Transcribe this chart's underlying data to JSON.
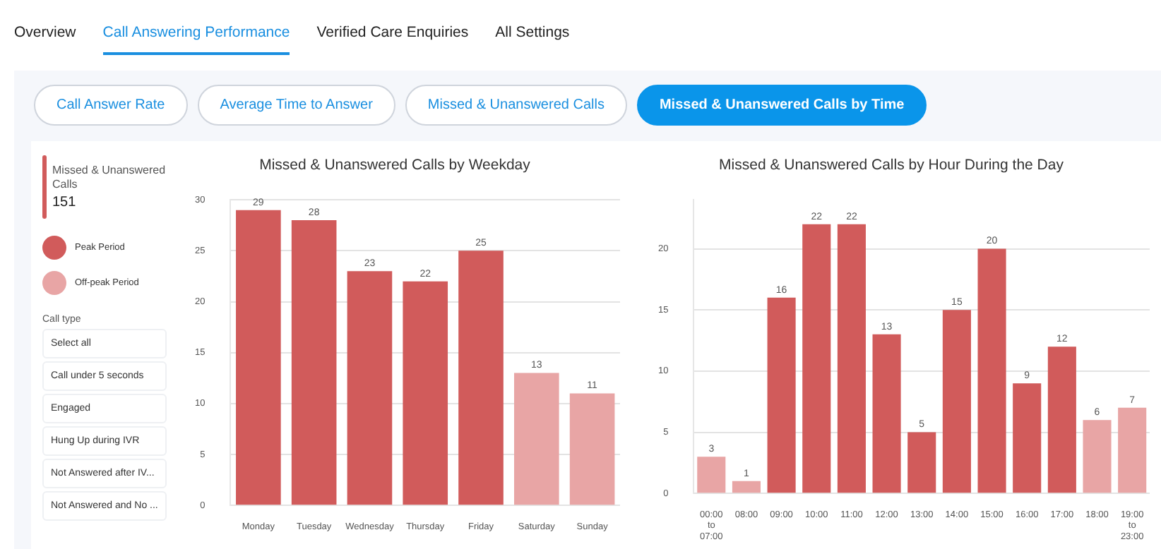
{
  "chart_data": [
    {
      "type": "other",
      "title": "Missed & Unanswered Calls",
      "colors": [
        "#d15b5b",
        "#e8a5a5"
      ],
      "annotations": [
        "Overview",
        "Call Answering Performance",
        "Verified Care Enquiries",
        "All Settings",
        "Call Answer Rate",
        "Average Time to Answer",
        "Missed & Unanswered Calls",
        "Missed & Unanswered Calls by Time",
        "151",
        "Peak Period",
        "Off-peak Period",
        "Call type",
        "Select all",
        "Call under 5 seconds",
        "Engaged",
        "Hung Up during IVR",
        "Not Answered after IV...",
        "Not Answered and No ..."
      ]
    },
    {
      "type": "bar",
      "title": "Missed & Unanswered Calls by Weekday",
      "categories": [
        "Monday",
        "Tuesday",
        "Wednesday",
        "Thursday",
        "Friday",
        "Saturday",
        "Sunday"
      ],
      "values": [
        29,
        28,
        23,
        22,
        25,
        13,
        11
      ],
      "colors": [
        "#d15b5b",
        "#d15b5b",
        "#d15b5b",
        "#d15b5b",
        "#d15b5b",
        "#e8a5a5",
        "#e8a5a5"
      ],
      "ylim": [
        0,
        30
      ],
      "yticks": [
        0,
        5,
        10,
        15,
        20,
        25,
        30
      ],
      "grid": "y",
      "data_labels": true
    },
    {
      "type": "bar",
      "title": "Missed & Unanswered Calls by Hour During the Day",
      "categories": [
        "00:00\nto\n07:00",
        "08:00",
        "09:00",
        "10:00",
        "11:00",
        "12:00",
        "13:00",
        "14:00",
        "15:00",
        "16:00",
        "17:00",
        "18:00",
        "19:00\nto\n23:00"
      ],
      "values": [
        3,
        1,
        16,
        22,
        22,
        13,
        5,
        15,
        20,
        9,
        12,
        6,
        7
      ],
      "colors": [
        "#e8a5a5",
        "#e8a5a5",
        "#d15b5b",
        "#d15b5b",
        "#d15b5b",
        "#d15b5b",
        "#d15b5b",
        "#d15b5b",
        "#d15b5b",
        "#d15b5b",
        "#d15b5b",
        "#e8a5a5",
        "#e8a5a5"
      ],
      "ylim": [
        0,
        24
      ],
      "yticks": [
        0,
        5,
        10,
        15,
        20
      ],
      "grid": "y",
      "data_labels": true
    }
  ]
}
